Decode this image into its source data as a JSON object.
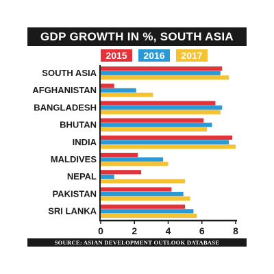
{
  "colors": {
    "series_2015": "#e3323a",
    "series_2016": "#2a9ad6",
    "series_2017": "#f5c232",
    "bar_band": "#1a1a1a"
  },
  "chart_data": {
    "type": "bar",
    "orientation": "horizontal",
    "title": "GDP GROWTH IN %, SOUTH ASIA",
    "source": "SOURCE: ASIAN DEVELOPMENT OUTLOOK DATABASE",
    "categories": [
      "SOUTH ASIA",
      "AFGHANISTAN",
      "BANGLADESH",
      "BHUTAN",
      "INDIA",
      "MALDIVES",
      "NEPAL",
      "PAKISTAN",
      "SRI LANKA"
    ],
    "series": [
      {
        "name": "2015",
        "values": [
          7.2,
          0.8,
          6.8,
          6.1,
          7.8,
          2.2,
          2.4,
          4.2,
          5.0
        ]
      },
      {
        "name": "2016",
        "values": [
          7.1,
          2.1,
          7.2,
          6.6,
          7.6,
          3.7,
          0.8,
          4.9,
          5.5
        ]
      },
      {
        "name": "2017",
        "values": [
          7.6,
          3.1,
          7.1,
          6.3,
          8.0,
          4.0,
          5.0,
          5.3,
          5.7
        ]
      }
    ],
    "xlim": [
      0,
      8
    ],
    "xticks": [
      0,
      2,
      4,
      6,
      8
    ],
    "legend_position": "top",
    "grid": false
  }
}
